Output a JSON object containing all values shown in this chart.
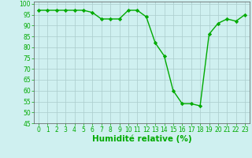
{
  "x": [
    0,
    1,
    2,
    3,
    4,
    5,
    6,
    7,
    8,
    9,
    10,
    11,
    12,
    13,
    14,
    15,
    16,
    17,
    18,
    19,
    20,
    21,
    22,
    23
  ],
  "y": [
    97,
    97,
    97,
    97,
    97,
    97,
    96,
    93,
    93,
    93,
    97,
    97,
    94,
    82,
    76,
    60,
    54,
    54,
    53,
    86,
    91,
    93,
    92,
    95
  ],
  "line_color": "#00aa00",
  "marker": "D",
  "marker_size": 2.2,
  "bg_color": "#cff0f0",
  "grid_color": "#aacccc",
  "xlabel": "Humidité relative (%)",
  "xlabel_color": "#00aa00",
  "ylim": [
    45,
    101
  ],
  "xlim": [
    -0.5,
    23.5
  ],
  "yticks": [
    45,
    50,
    55,
    60,
    65,
    70,
    75,
    80,
    85,
    90,
    95,
    100
  ],
  "xticks": [
    0,
    1,
    2,
    3,
    4,
    5,
    6,
    7,
    8,
    9,
    10,
    11,
    12,
    13,
    14,
    15,
    16,
    17,
    18,
    19,
    20,
    21,
    22,
    23
  ],
  "tick_label_size": 5.5,
  "xlabel_size": 7.5,
  "linewidth": 1.0
}
